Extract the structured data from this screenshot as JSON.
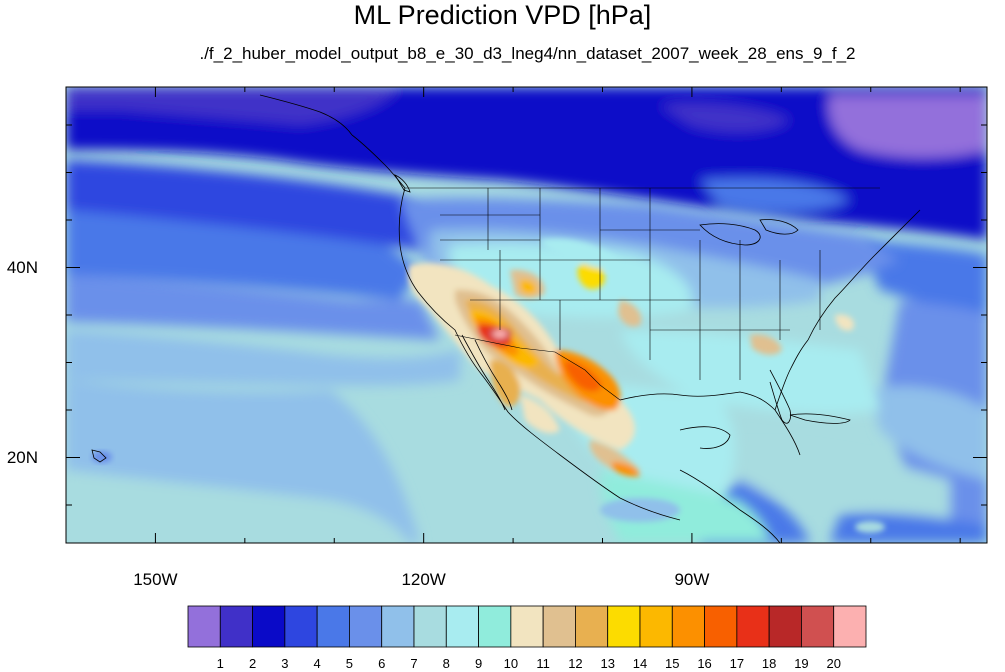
{
  "title": "ML Prediction VPD [hPa]",
  "subtitle": "./f_2_huber_model_output_b8_e_30_d3_lneg4/nn_dataset_2007_week_28_ens_9_f_2",
  "map": {
    "lon_range": [
      -160,
      -57
    ],
    "lat_range": [
      11,
      59
    ],
    "lon_ticks": [
      {
        "value": -150,
        "label": "150W"
      },
      {
        "value": -120,
        "label": "120W"
      },
      {
        "value": -90,
        "label": "90W"
      }
    ],
    "lat_ticks": [
      {
        "value": 40,
        "label": "40N"
      },
      {
        "value": 20,
        "label": "20N"
      }
    ]
  },
  "colorbar": {
    "levels": [
      "1",
      "2",
      "3",
      "4",
      "5",
      "6",
      "7",
      "8",
      "9",
      "10",
      "11",
      "12",
      "13",
      "14",
      "15",
      "16",
      "17",
      "18",
      "19",
      "20"
    ],
    "colors": [
      "#9370db",
      "#4030c8",
      "#0a0ac8",
      "#2e46e0",
      "#4a78e8",
      "#6a90ea",
      "#90c0ea",
      "#a8dce0",
      "#a8ecf0",
      "#90ecdc",
      "#f2e4c0",
      "#e0c090",
      "#e8b050",
      "#fcdc00",
      "#fcb800",
      "#fc9000",
      "#f86000",
      "#e83018",
      "#b82828",
      "#d05050",
      "#fcb0b0"
    ]
  }
}
